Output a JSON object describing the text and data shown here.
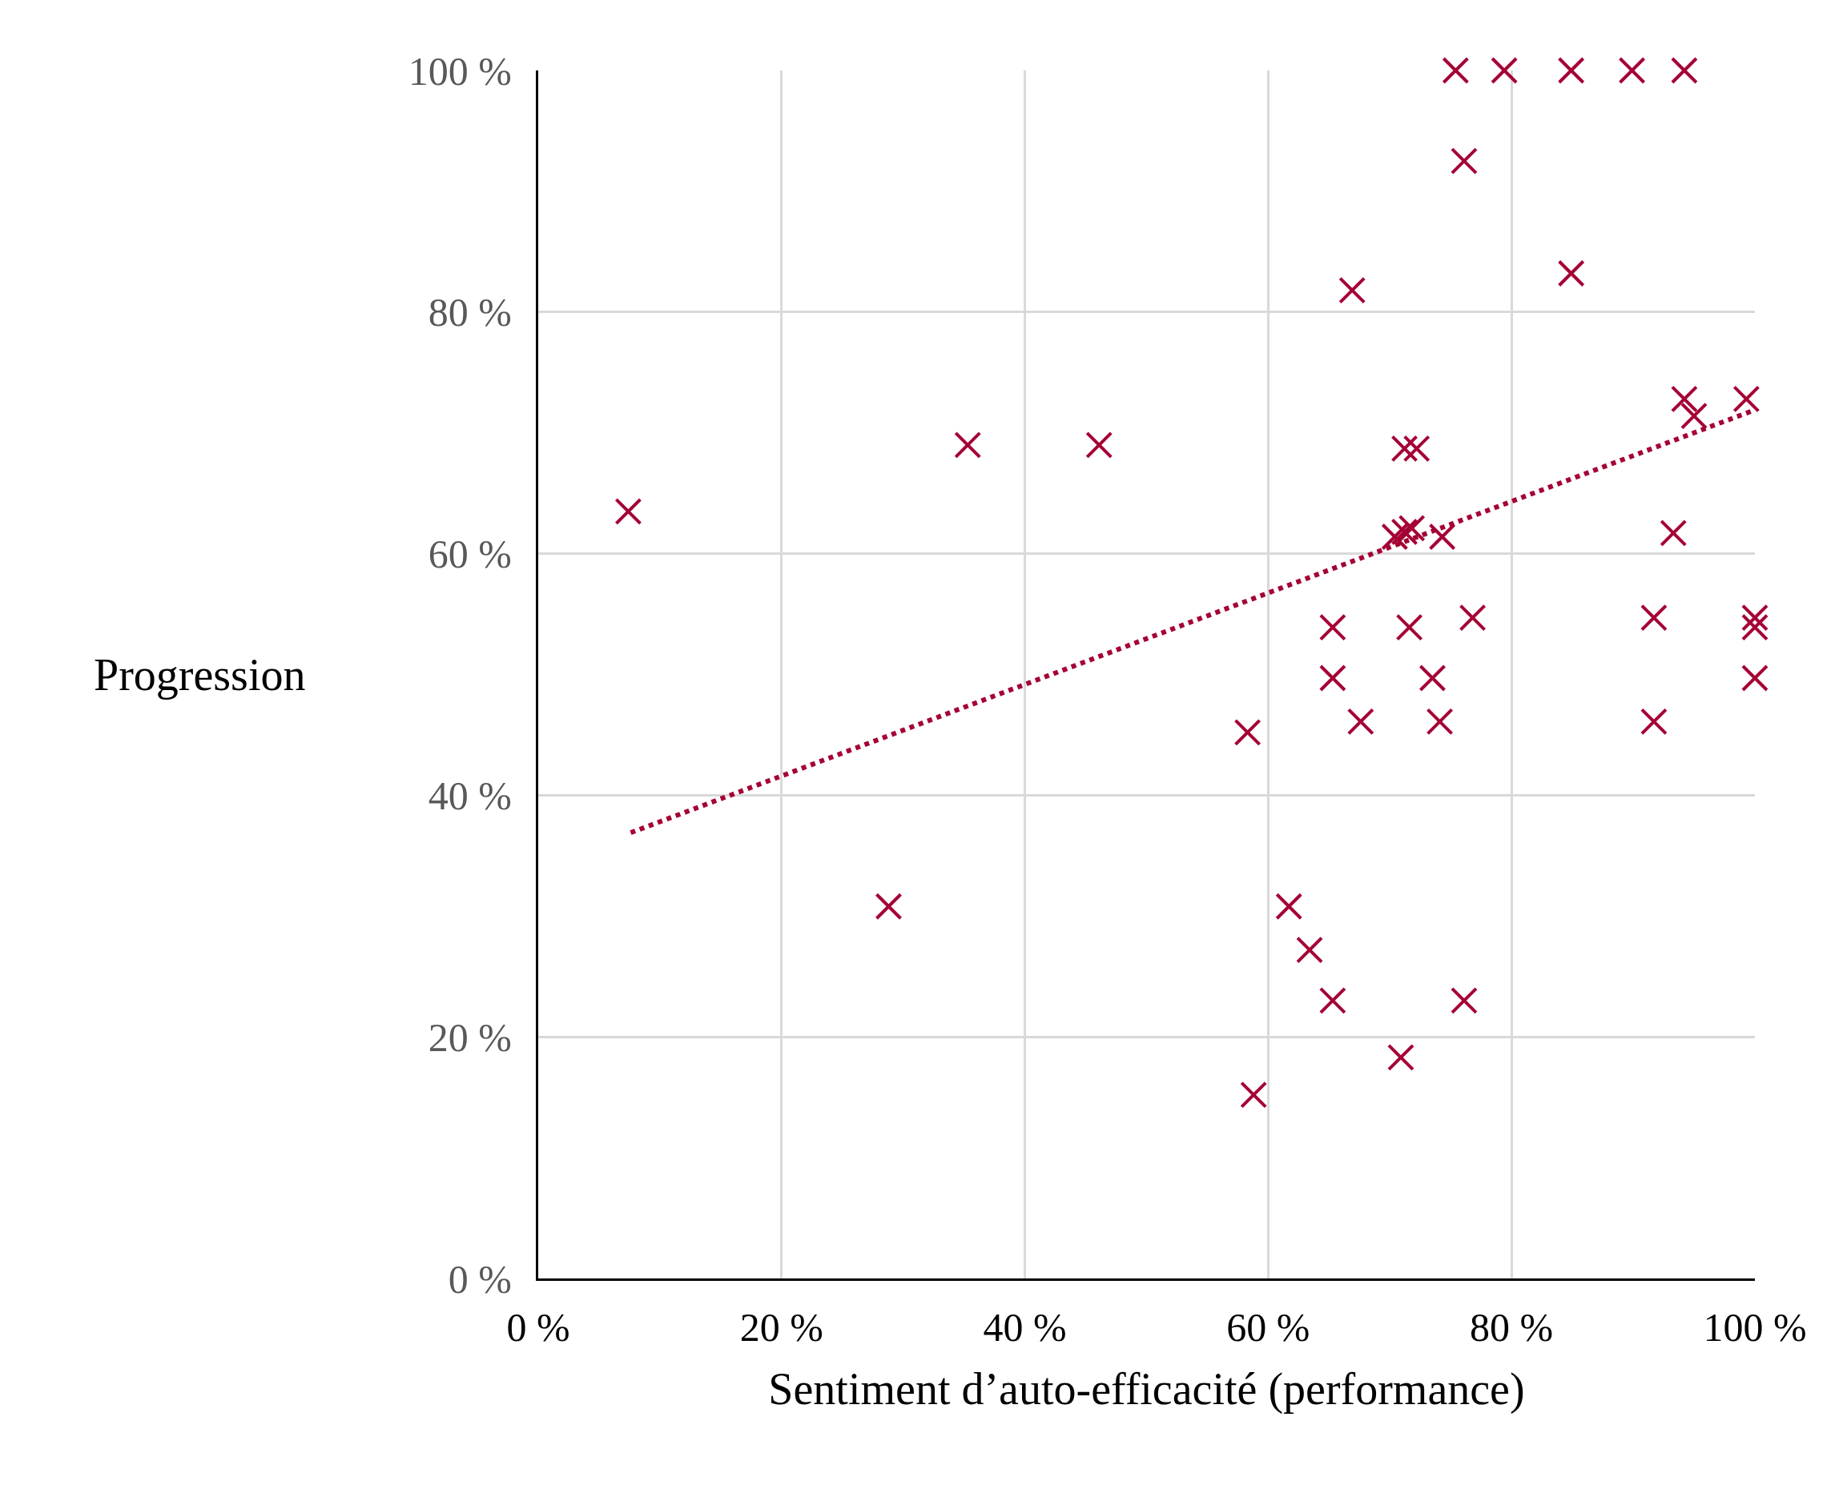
{
  "chart_data": {
    "type": "scatter",
    "xlabel": "Sentiment d’auto-efficacité (performance)",
    "ylabel": "Progression",
    "xlim": [
      0,
      100
    ],
    "ylim": [
      0,
      100
    ],
    "xticks": [
      {
        "value": 0,
        "label": "0 %"
      },
      {
        "value": 20,
        "label": "20 %"
      },
      {
        "value": 40,
        "label": "40 %"
      },
      {
        "value": 60,
        "label": "60 %"
      },
      {
        "value": 80,
        "label": "80 %"
      },
      {
        "value": 100,
        "label": "100 %"
      }
    ],
    "yticks": [
      {
        "value": 0,
        "label": "0 %"
      },
      {
        "value": 20,
        "label": "20 %"
      },
      {
        "value": 40,
        "label": "40 %"
      },
      {
        "value": 60,
        "label": "60 %"
      },
      {
        "value": 80,
        "label": "80 %"
      },
      {
        "value": 100,
        "label": "100 %"
      }
    ],
    "grid": true,
    "series": [
      {
        "type": "scatter",
        "marker": "cross",
        "color": "#a50034",
        "x": [
          7.4,
          28.8,
          35.3,
          46.1,
          58.3,
          58.8,
          61.7,
          63.4,
          65.3,
          65.3,
          65.3,
          66.9,
          67.6,
          70.4,
          71.2,
          71.8,
          74.3,
          71.2,
          72.2,
          70.9,
          71.6,
          73.5,
          74.1,
          75.4,
          76.1,
          76.1,
          76.8,
          79.4,
          84.9,
          84.9,
          89.9,
          91.7,
          91.7,
          93.3,
          94.2,
          94.2,
          95.0,
          99.3,
          100,
          100,
          100
        ],
        "values": [
          63.5,
          30.8,
          69.0,
          69.0,
          45.2,
          15.2,
          30.8,
          27.2,
          23.0,
          53.9,
          49.7,
          81.8,
          46.1,
          61.4,
          61.8,
          62.1,
          61.4,
          68.7,
          68.7,
          18.3,
          53.9,
          49.7,
          46.1,
          100,
          92.5,
          23.0,
          54.7,
          100,
          100,
          83.2,
          100,
          54.7,
          46.1,
          61.7,
          100,
          72.8,
          71.4,
          72.8,
          54.7,
          53.9,
          49.7
        ]
      },
      {
        "type": "line",
        "line_style": "dotted",
        "color": "#a50034",
        "x": [
          7.6,
          100
        ],
        "values": [
          36.9,
          71.9
        ]
      }
    ]
  }
}
